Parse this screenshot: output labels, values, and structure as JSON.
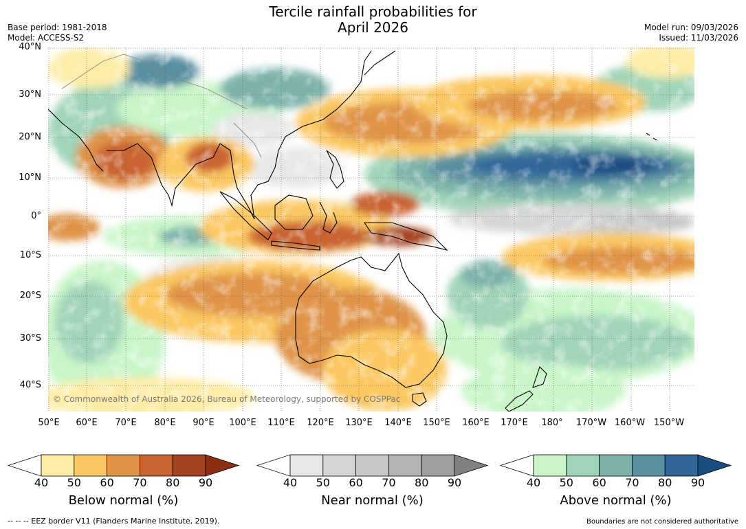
{
  "title": {
    "line1": "Tercile rainfall probabilities for",
    "line2": "April 2026"
  },
  "meta": {
    "base_period": "Base period: 1981-2018",
    "model": "Model: ACCESS-S2",
    "model_run": "Model run: 09/03/2026",
    "issued": "Issued: 11/03/2026"
  },
  "lat_labels": [
    "40°N",
    "30°N",
    "20°N",
    "10°N",
    "0°",
    "10°S",
    "20°S",
    "30°S",
    "40°S"
  ],
  "lon_labels": [
    "50°E",
    "60°E",
    "70°E",
    "80°E",
    "90°E",
    "100°E",
    "110°E",
    "120°E",
    "130°E",
    "140°E",
    "150°E",
    "160°E",
    "170°E",
    "180°",
    "170°W",
    "160°W",
    "150°W"
  ],
  "copyright": "© Commonwealth of Australia 2026, Bureau of Meteorology, supported by COSPPac",
  "colorbars": [
    {
      "label": "Below normal (%)",
      "ticks": [
        "40",
        "50",
        "60",
        "70",
        "80",
        "90"
      ],
      "colors": [
        "#ffffff",
        "#fdeca6",
        "#fbc862",
        "#e09448",
        "#c96432",
        "#a4431e",
        "#8b2e14"
      ]
    },
    {
      "label": "Near normal (%)",
      "ticks": [
        "40",
        "50",
        "60",
        "70",
        "80",
        "90"
      ],
      "colors": [
        "#ffffff",
        "#e7e7e7",
        "#d6d6d6",
        "#c8c8c8",
        "#b3b3b3",
        "#a0a0a0",
        "#808080"
      ]
    },
    {
      "label": "Above normal (%)",
      "ticks": [
        "40",
        "50",
        "60",
        "70",
        "80",
        "90"
      ],
      "colors": [
        "#ffffff",
        "#c9f5c9",
        "#a0d4b8",
        "#7db3ab",
        "#5a8fa0",
        "#336699",
        "#1a4c80"
      ]
    }
  ],
  "footer": {
    "eez": "--  --  -- EEZ border V11 (Flanders Marine Institute, 2019).",
    "boundaries": "Boundaries are not considered authoritative"
  }
}
